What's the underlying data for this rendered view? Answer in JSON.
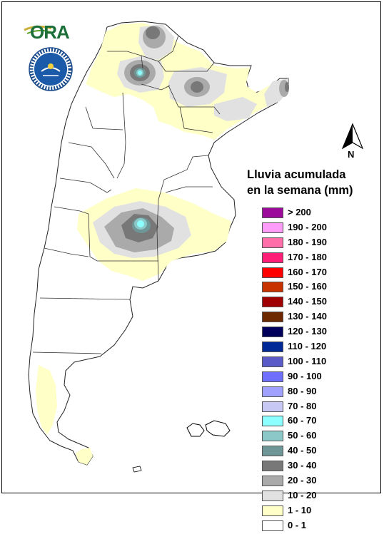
{
  "logo": {
    "text": "ORA"
  },
  "seal": {
    "name": "smn-seal"
  },
  "north": {
    "label": "N"
  },
  "legend": {
    "title_line1": "Lluvia acumulada",
    "title_line2": "en la semana (mm)",
    "items": [
      {
        "label": "> 200",
        "color": "#9b0a9b"
      },
      {
        "label": "190 - 200",
        "color": "#ff9cf7"
      },
      {
        "label": "180 - 190",
        "color": "#ff6ea8"
      },
      {
        "label": "170 - 180",
        "color": "#ff1e78"
      },
      {
        "label": "160 - 170",
        "color": "#ff0000"
      },
      {
        "label": "150 - 160",
        "color": "#c83200"
      },
      {
        "label": "140 - 150",
        "color": "#a00000"
      },
      {
        "label": "130 - 140",
        "color": "#6e2800"
      },
      {
        "label": "120 - 130",
        "color": "#00005a"
      },
      {
        "label": "110 - 120",
        "color": "#002896"
      },
      {
        "label": "100 - 110",
        "color": "#5a5ac8"
      },
      {
        "label": "90 - 100",
        "color": "#6e6eff"
      },
      {
        "label": "80 - 90",
        "color": "#a0a0ff"
      },
      {
        "label": "70 - 80",
        "color": "#c8c8f5"
      },
      {
        "label": "60 - 70",
        "color": "#8cffff"
      },
      {
        "label": "50 - 60",
        "color": "#8cc8c8"
      },
      {
        "label": "40 - 50",
        "color": "#6e9696"
      },
      {
        "label": "30 - 40",
        "color": "#787878"
      },
      {
        "label": "20 - 30",
        "color": "#aaaaaa"
      },
      {
        "label": "10 - 20",
        "color": "#e1e1e1"
      },
      {
        "label": "1 - 10",
        "color": "#ffffc8"
      },
      {
        "label": "0 - 1",
        "color": "#ffffff"
      }
    ]
  }
}
